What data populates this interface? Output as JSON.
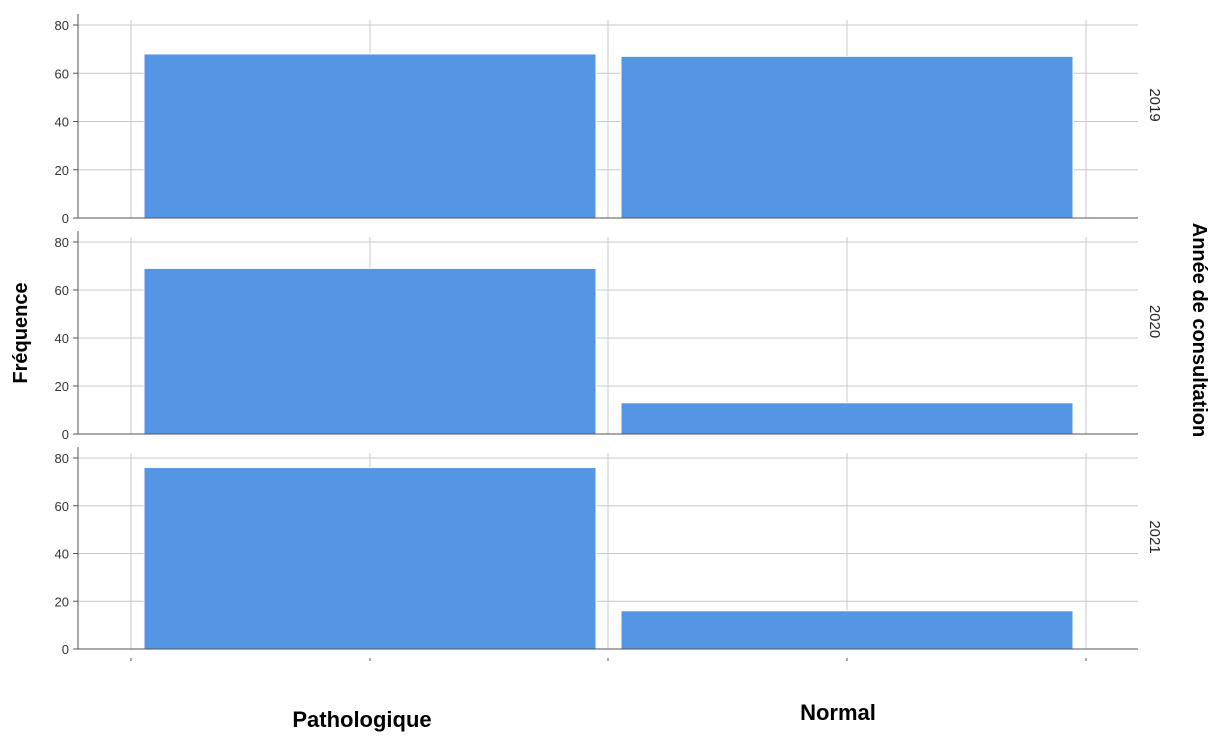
{
  "chart_data": {
    "type": "bar",
    "ylabel": "Fréquence",
    "panel_axis_label": "Année de consultation",
    "categories": [
      "Pathologique",
      "Normal"
    ],
    "ylim": [
      0,
      80
    ],
    "yticks": [
      0,
      20,
      40,
      60,
      80
    ],
    "grid": true,
    "bar_color": "#5596e4",
    "panels": [
      {
        "label": "2019",
        "values": [
          68,
          67
        ]
      },
      {
        "label": "2020",
        "values": [
          69,
          13
        ]
      },
      {
        "label": "2021",
        "values": [
          76,
          16
        ]
      }
    ]
  }
}
